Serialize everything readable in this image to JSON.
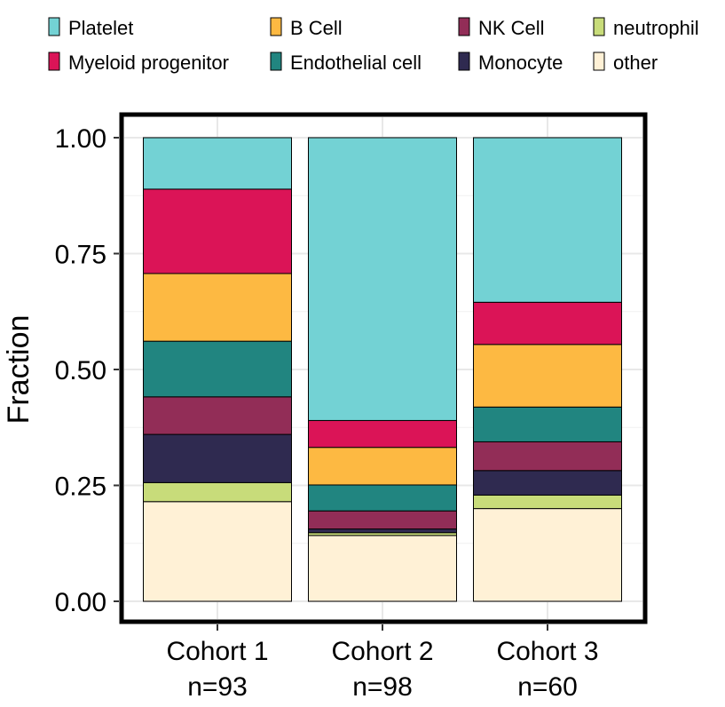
{
  "chart_data": {
    "type": "bar",
    "stacked": true,
    "ylabel": "Fraction",
    "xlabel": "",
    "ylim": [
      0,
      1
    ],
    "yticks": [
      "0.00",
      "0.25",
      "0.50",
      "0.75",
      "1.00"
    ],
    "ytick_values": [
      0,
      0.25,
      0.5,
      0.75,
      1.0
    ],
    "grid": true,
    "legend_position": "top",
    "categories": [
      {
        "line1": "Cohort 1",
        "line2": "n=93"
      },
      {
        "line1": "Cohort 2",
        "line2": "n=98"
      },
      {
        "line1": "Cohort 3",
        "line2": "n=60"
      }
    ],
    "series": [
      {
        "name": "other",
        "color": "#FFF1D6",
        "values": [
          0.215,
          0.142,
          0.2
        ]
      },
      {
        "name": "neutrophil",
        "color": "#C8DC7A",
        "values": [
          0.041,
          0.006,
          0.029
        ]
      },
      {
        "name": "Monocyte",
        "color": "#2F2A50",
        "values": [
          0.104,
          0.008,
          0.053
        ]
      },
      {
        "name": "NK Cell",
        "color": "#922D57",
        "values": [
          0.081,
          0.039,
          0.062
        ]
      },
      {
        "name": "Endothelial cell",
        "color": "#218580",
        "values": [
          0.12,
          0.056,
          0.075
        ]
      },
      {
        "name": "B Cell",
        "color": "#FDB942",
        "values": [
          0.146,
          0.081,
          0.135
        ]
      },
      {
        "name": "Myeloid progenitor",
        "color": "#DB1457",
        "values": [
          0.182,
          0.058,
          0.091
        ]
      },
      {
        "name": "Platelet",
        "color": "#73D2D4",
        "values": [
          0.111,
          0.61,
          0.355
        ]
      }
    ],
    "legend_order": [
      "Platelet",
      "B Cell",
      "NK Cell",
      "neutrophil",
      "Myeloid progenitor",
      "Endothelial cell",
      "Monocyte",
      "other"
    ]
  }
}
